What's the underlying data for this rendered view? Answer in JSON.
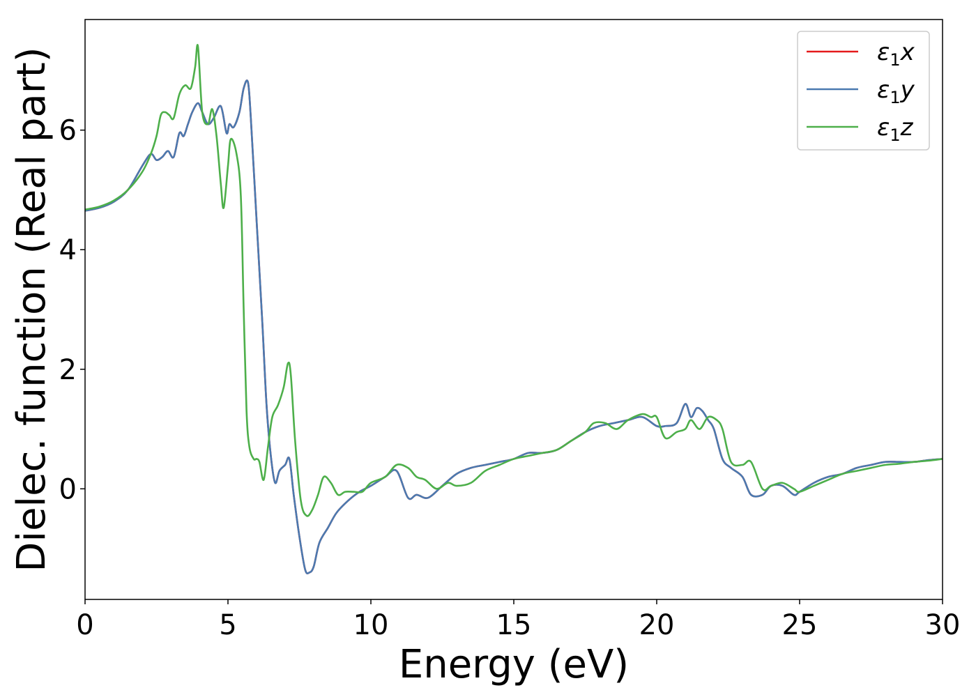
{
  "chart_data": {
    "type": "line",
    "title": "",
    "xlabel": "Energy (eV)",
    "ylabel": "Dielec. function (Real part)",
    "xlim": [
      0,
      30
    ],
    "ylim": [
      -1.85,
      7.85
    ],
    "xticks": [
      0,
      5,
      10,
      15,
      20,
      25,
      30
    ],
    "yticks": [
      0,
      2,
      4,
      6
    ],
    "grid": false,
    "legend_position": "top-right",
    "series": [
      {
        "name": "ε1x",
        "legend_main": "ε",
        "legend_sub": "1",
        "legend_suffix": "x",
        "color": "#e41a1c",
        "x": [
          0,
          0.5,
          1,
          1.5,
          2,
          2.3,
          2.5,
          2.7,
          2.9,
          3.1,
          3.3,
          3.45,
          3.6,
          3.75,
          3.95,
          4.1,
          4.3,
          4.5,
          4.75,
          4.95,
          5.05,
          5.2,
          5.4,
          5.55,
          5.7,
          5.8,
          6.0,
          6.2,
          6.35,
          6.5,
          6.65,
          6.8,
          7.0,
          7.15,
          7.3,
          7.5,
          7.7,
          7.85,
          8.0,
          8.2,
          8.5,
          8.8,
          9.2,
          9.6,
          10,
          10.5,
          10.9,
          11.3,
          11.6,
          12.0,
          12.5,
          13.0,
          13.5,
          14.0,
          14.5,
          15.0,
          15.5,
          16.0,
          16.5,
          17.0,
          17.5,
          18.0,
          18.5,
          19.0,
          19.5,
          20.0,
          20.3,
          20.7,
          21.0,
          21.2,
          21.4,
          21.6,
          21.8,
          22.0,
          22.3,
          22.6,
          23.0,
          23.3,
          23.7,
          24.0,
          24.4,
          24.8,
          25.0,
          25.5,
          26.0,
          26.5,
          27.0,
          27.5,
          28.0,
          28.5,
          29.0,
          29.5,
          30.0
        ],
        "values": [
          4.65,
          4.7,
          4.8,
          5.0,
          5.4,
          5.6,
          5.5,
          5.55,
          5.65,
          5.55,
          5.95,
          5.9,
          6.1,
          6.3,
          6.45,
          6.3,
          6.1,
          6.2,
          6.4,
          5.95,
          6.1,
          6.05,
          6.3,
          6.7,
          6.8,
          6.2,
          4.5,
          2.8,
          1.4,
          0.55,
          0.1,
          0.3,
          0.4,
          0.5,
          -0.1,
          -0.8,
          -1.35,
          -1.4,
          -1.3,
          -0.9,
          -0.65,
          -0.4,
          -0.2,
          -0.05,
          0.05,
          0.2,
          0.3,
          -0.15,
          -0.1,
          -0.15,
          0.05,
          0.25,
          0.35,
          0.4,
          0.45,
          0.5,
          0.6,
          0.6,
          0.65,
          0.8,
          0.95,
          1.05,
          1.1,
          1.15,
          1.2,
          1.05,
          1.05,
          1.1,
          1.42,
          1.2,
          1.35,
          1.3,
          1.15,
          1.0,
          0.5,
          0.35,
          0.2,
          -0.1,
          -0.1,
          0.05,
          0.05,
          -0.1,
          -0.05,
          0.1,
          0.2,
          0.25,
          0.35,
          0.4,
          0.45,
          0.45,
          0.45,
          0.48,
          0.5
        ]
      },
      {
        "name": "ε1y",
        "legend_main": "ε",
        "legend_sub": "1",
        "legend_suffix": "y",
        "color": "#4a7ab0",
        "x": [
          0,
          0.5,
          1,
          1.5,
          2,
          2.3,
          2.5,
          2.7,
          2.9,
          3.1,
          3.3,
          3.45,
          3.6,
          3.75,
          3.95,
          4.1,
          4.3,
          4.5,
          4.75,
          4.95,
          5.05,
          5.2,
          5.4,
          5.55,
          5.7,
          5.8,
          6.0,
          6.2,
          6.35,
          6.5,
          6.65,
          6.8,
          7.0,
          7.15,
          7.3,
          7.5,
          7.7,
          7.85,
          8.0,
          8.2,
          8.5,
          8.8,
          9.2,
          9.6,
          10,
          10.5,
          10.9,
          11.3,
          11.6,
          12.0,
          12.5,
          13.0,
          13.5,
          14.0,
          14.5,
          15.0,
          15.5,
          16.0,
          16.5,
          17.0,
          17.5,
          18.0,
          18.5,
          19.0,
          19.5,
          20.0,
          20.3,
          20.7,
          21.0,
          21.2,
          21.4,
          21.6,
          21.8,
          22.0,
          22.3,
          22.6,
          23.0,
          23.3,
          23.7,
          24.0,
          24.4,
          24.8,
          25.0,
          25.5,
          26.0,
          26.5,
          27.0,
          27.5,
          28.0,
          28.5,
          29.0,
          29.5,
          30.0
        ],
        "values": [
          4.65,
          4.7,
          4.8,
          5.0,
          5.4,
          5.6,
          5.5,
          5.55,
          5.65,
          5.55,
          5.95,
          5.9,
          6.1,
          6.3,
          6.45,
          6.3,
          6.1,
          6.2,
          6.4,
          5.95,
          6.1,
          6.05,
          6.3,
          6.7,
          6.8,
          6.2,
          4.5,
          2.8,
          1.4,
          0.55,
          0.1,
          0.3,
          0.4,
          0.5,
          -0.1,
          -0.8,
          -1.35,
          -1.4,
          -1.3,
          -0.9,
          -0.65,
          -0.4,
          -0.2,
          -0.05,
          0.05,
          0.2,
          0.3,
          -0.15,
          -0.1,
          -0.15,
          0.05,
          0.25,
          0.35,
          0.4,
          0.45,
          0.5,
          0.6,
          0.6,
          0.65,
          0.8,
          0.95,
          1.05,
          1.1,
          1.15,
          1.2,
          1.05,
          1.05,
          1.1,
          1.42,
          1.2,
          1.35,
          1.3,
          1.15,
          1.0,
          0.5,
          0.35,
          0.2,
          -0.1,
          -0.1,
          0.05,
          0.05,
          -0.1,
          -0.05,
          0.1,
          0.2,
          0.25,
          0.35,
          0.4,
          0.45,
          0.45,
          0.45,
          0.48,
          0.5
        ]
      },
      {
        "name": "ε1z",
        "legend_main": "ε",
        "legend_sub": "1",
        "legend_suffix": "z",
        "color": "#4daf4a",
        "x": [
          0,
          0.5,
          1,
          1.5,
          2,
          2.3,
          2.5,
          2.65,
          2.8,
          2.95,
          3.1,
          3.3,
          3.5,
          3.7,
          3.85,
          3.95,
          4.1,
          4.3,
          4.45,
          4.6,
          4.75,
          4.85,
          5.0,
          5.1,
          5.3,
          5.45,
          5.55,
          5.65,
          5.75,
          5.9,
          6.0,
          6.1,
          6.25,
          6.4,
          6.55,
          6.75,
          6.95,
          7.1,
          7.2,
          7.35,
          7.55,
          7.75,
          7.95,
          8.15,
          8.35,
          8.6,
          8.85,
          9.1,
          9.4,
          9.7,
          10.0,
          10.5,
          10.9,
          11.3,
          11.6,
          11.9,
          12.3,
          12.7,
          13.0,
          13.5,
          14.0,
          14.5,
          15.0,
          15.5,
          16.0,
          16.5,
          17.0,
          17.5,
          17.8,
          18.2,
          18.6,
          19.0,
          19.5,
          19.8,
          20.0,
          20.3,
          20.7,
          21.0,
          21.2,
          21.5,
          21.8,
          22.1,
          22.3,
          22.6,
          23.0,
          23.3,
          23.7,
          24.0,
          24.4,
          24.8,
          25.0,
          25.5,
          26.0,
          26.5,
          27.0,
          27.5,
          28.0,
          28.5,
          29.0,
          29.5,
          30.0
        ],
        "values": [
          4.67,
          4.72,
          4.82,
          5.0,
          5.3,
          5.6,
          5.9,
          6.25,
          6.3,
          6.25,
          6.2,
          6.6,
          6.75,
          6.7,
          7.05,
          7.4,
          6.3,
          6.1,
          6.35,
          5.9,
          5.1,
          4.7,
          5.4,
          5.85,
          5.6,
          4.9,
          3.0,
          1.3,
          0.7,
          0.5,
          0.5,
          0.45,
          0.15,
          0.7,
          1.2,
          1.4,
          1.7,
          2.1,
          1.9,
          0.8,
          -0.2,
          -0.45,
          -0.35,
          -0.1,
          0.2,
          0.1,
          -0.1,
          -0.05,
          -0.05,
          -0.05,
          0.1,
          0.2,
          0.4,
          0.35,
          0.2,
          0.15,
          0.0,
          0.1,
          0.05,
          0.1,
          0.3,
          0.4,
          0.5,
          0.55,
          0.6,
          0.65,
          0.8,
          0.95,
          1.1,
          1.1,
          1.0,
          1.15,
          1.25,
          1.2,
          1.2,
          0.85,
          0.95,
          1.0,
          1.15,
          1.0,
          1.2,
          1.15,
          1.0,
          0.45,
          0.4,
          0.45,
          0.0,
          0.05,
          0.1,
          0.0,
          -0.05,
          0.05,
          0.15,
          0.25,
          0.3,
          0.35,
          0.4,
          0.42,
          0.45,
          0.47,
          0.5
        ]
      }
    ]
  }
}
